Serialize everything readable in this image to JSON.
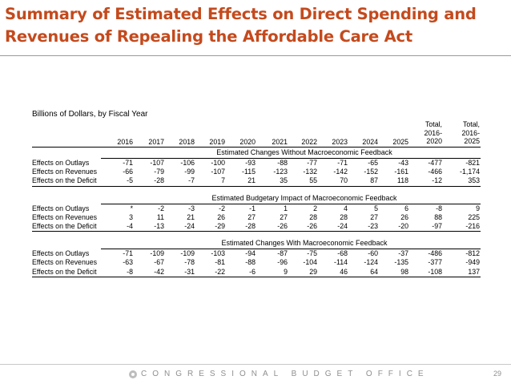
{
  "slide": {
    "title": "Summary of Estimated Effects on Direct Spending and Revenues of Repealing the Affordable Care Act",
    "subtitle": "Billions of Dollars, by Fiscal Year",
    "footer": "CONGRESSIONAL BUDGET OFFICE",
    "page_number": "29"
  },
  "table": {
    "years": [
      "2016",
      "2017",
      "2018",
      "2019",
      "2020",
      "2021",
      "2022",
      "2023",
      "2024",
      "2025"
    ],
    "total_1": [
      "Total,",
      "2016-",
      "2020"
    ],
    "total_2": [
      "Total,",
      "2016-",
      "2025"
    ],
    "sections": [
      {
        "title": "Estimated Changes Without Macroeconomic Feedback",
        "rows": [
          {
            "label": "Effects on Outlays",
            "values": [
              "-71",
              "-107",
              "-106",
              "-100",
              "-93",
              "-88",
              "-77",
              "-71",
              "-65",
              "-43",
              "-477",
              "-821"
            ]
          },
          {
            "label": "Effects on Revenues",
            "values": [
              "-66",
              "-79",
              "-99",
              "-107",
              "-115",
              "-123",
              "-132",
              "-142",
              "-152",
              "-161",
              "-466",
              "-1,174"
            ]
          },
          {
            "label": "Effects on the Deficit",
            "values": [
              "-5",
              "-28",
              "-7",
              "7",
              "21",
              "35",
              "55",
              "70",
              "87",
              "118",
              "-12",
              "353"
            ]
          }
        ]
      },
      {
        "title": "Estimated Budgetary Impact of Macroeconomic Feedback",
        "rows": [
          {
            "label": "Effects on Outlays",
            "values": [
              "*",
              "-2",
              "-3",
              "-2",
              "-1",
              "1",
              "2",
              "4",
              "5",
              "6",
              "-8",
              "9"
            ]
          },
          {
            "label": "Effects on Revenues",
            "values": [
              "3",
              "11",
              "21",
              "26",
              "27",
              "27",
              "28",
              "28",
              "27",
              "26",
              "88",
              "225"
            ]
          },
          {
            "label": "Effects on the Deficit",
            "values": [
              "-4",
              "-13",
              "-24",
              "-29",
              "-28",
              "-26",
              "-26",
              "-24",
              "-23",
              "-20",
              "-97",
              "-216"
            ]
          }
        ]
      },
      {
        "title": "Estimated Changes With Macroeconomic Feedback",
        "rows": [
          {
            "label": "Effects on Outlays",
            "values": [
              "-71",
              "-109",
              "-109",
              "-103",
              "-94",
              "-87",
              "-75",
              "-68",
              "-60",
              "-37",
              "-486",
              "-812"
            ]
          },
          {
            "label": "Effects on Revenues",
            "values": [
              "-63",
              "-67",
              "-78",
              "-81",
              "-88",
              "-96",
              "-104",
              "-114",
              "-124",
              "-135",
              "-377",
              "-949"
            ]
          },
          {
            "label": "Effects on the Deficit",
            "values": [
              "-8",
              "-42",
              "-31",
              "-22",
              "-6",
              "9",
              "29",
              "46",
              "64",
              "98",
              "-108",
              "137"
            ]
          }
        ]
      }
    ]
  }
}
